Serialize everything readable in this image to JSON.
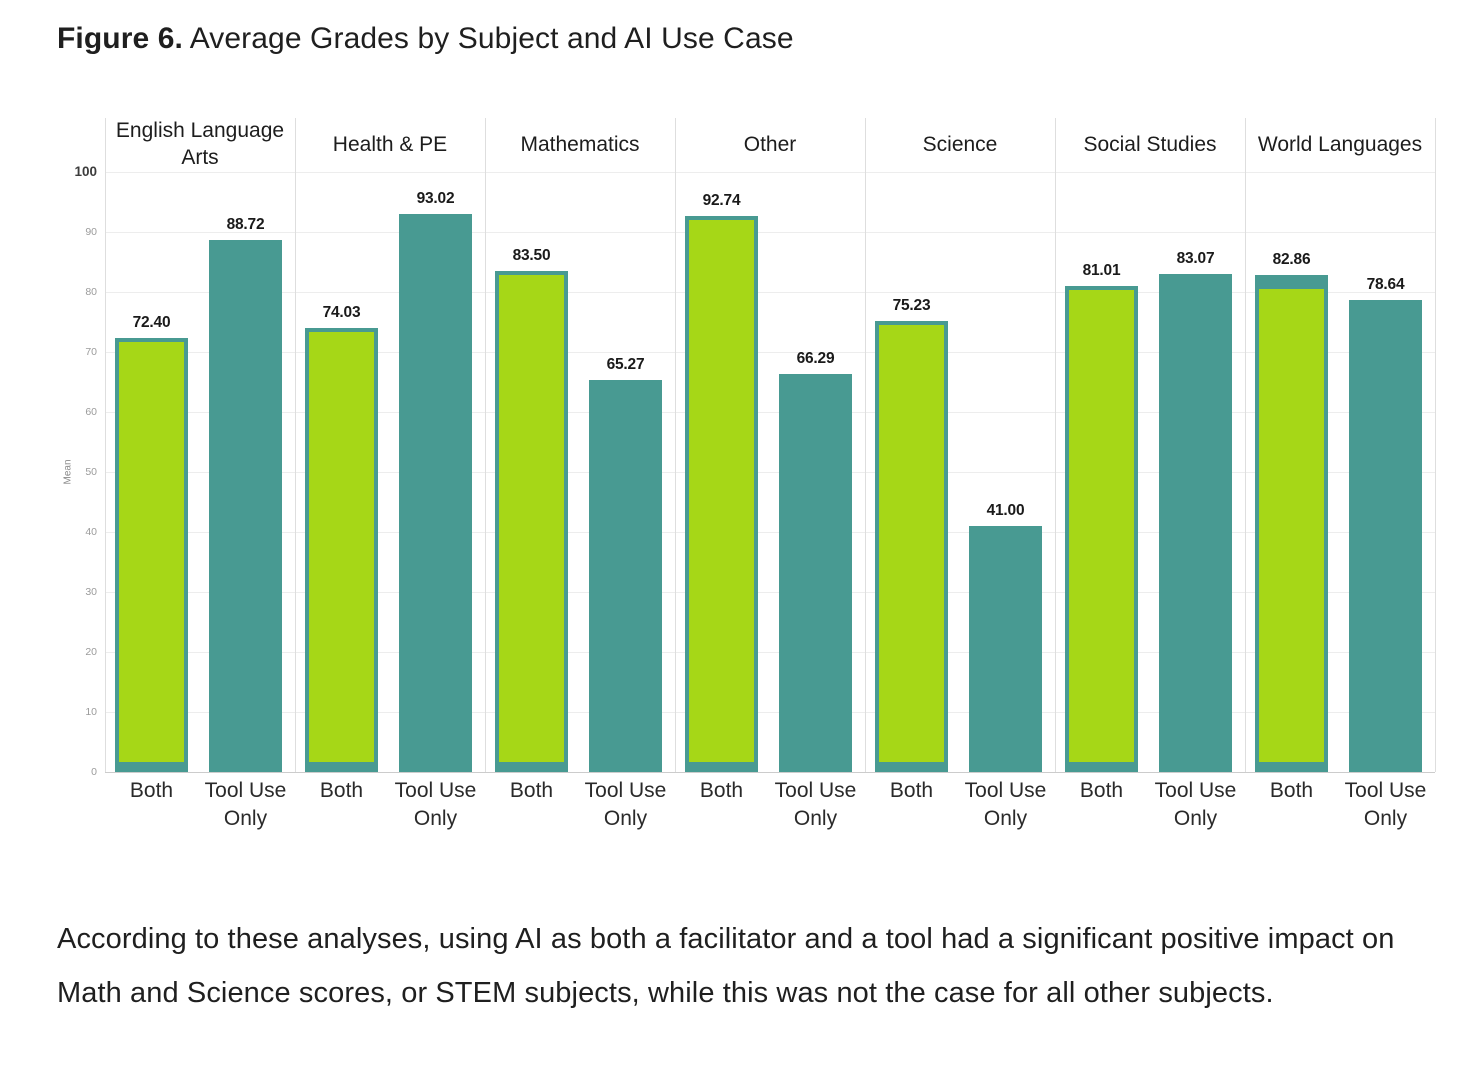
{
  "figure": {
    "label": "Figure 6.",
    "title": " Average Grades by Subject and AI Use Case"
  },
  "chart_data": {
    "type": "bar",
    "title": "Average Grades by Subject and AI Use Case",
    "xlabel": "",
    "ylabel": "Mean",
    "ylim": [
      0,
      100
    ],
    "yticks": [
      100,
      90,
      80,
      70,
      60,
      50,
      40,
      30,
      20,
      10,
      0
    ],
    "grid": true,
    "legend_position": "none",
    "categories": [
      "English Language Arts",
      "Health & PE",
      "Mathematics",
      "Other",
      "Science",
      "Social Studies",
      "World Languages"
    ],
    "x_tick_labels": [
      "Both",
      "Tool Use Only"
    ],
    "series": [
      {
        "name": "Both",
        "values": [
          72.4,
          74.03,
          83.5,
          92.74,
          75.23,
          81.01,
          82.86
        ],
        "labels": [
          "72.40",
          "74.03",
          "83.50",
          "92.74",
          "75.23",
          "81.01",
          "82.86"
        ],
        "fill_color": "#a6d717",
        "border_color": "#489a92"
      },
      {
        "name": "Tool Use Only",
        "values": [
          88.72,
          93.02,
          65.27,
          66.29,
          41.0,
          83.07,
          78.64
        ],
        "labels": [
          "88.72",
          "93.02",
          "65.27",
          "66.29",
          "41.00",
          "83.07",
          "78.64"
        ],
        "fill_color": "#489a92"
      }
    ]
  },
  "caption": "According to these analyses, using AI as both a facilitator and a tool had a significant positive impact on Math and Science scores, or STEM subjects, while this was not the case for all other subjects."
}
